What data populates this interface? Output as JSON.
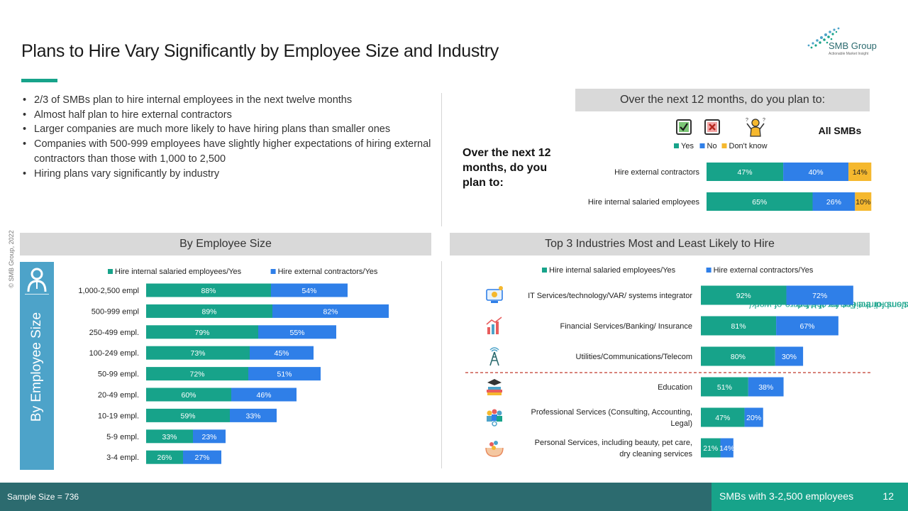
{
  "title": "Plans to Hire Vary Significantly by Employee Size and Industry",
  "logo": {
    "name": "SMB Group",
    "tagline": "Actionable Market Insight"
  },
  "bullets": [
    "2/3 of SMBs plan to hire internal employees in the next twelve months",
    "Almost half plan to hire external contractors",
    "Larger companies are much more likely to have hiring plans than smaller ones",
    "Companies with 500-999 employees have slightly higher expectations of hiring external contractors than those with 1,000 to 2,500",
    "Hiring plans vary significantly by industry"
  ],
  "copyright": "© SMB Group, 2022",
  "source": {
    "line1": "Source:  SMB Directions for the Future of Work",
    "line2": "https://www.smb-gr.com/reports/smb-directions-for-the-future-of-work/."
  },
  "top_panel": {
    "header": "Over the  next 12 months, do you plan to:",
    "big_question": "Over the next 12 months, do you plan to:",
    "all_smbs": "All SMBs",
    "icons": [
      "yes-checkbox-icon",
      "no-checkbox-icon",
      "dont-know-person-icon"
    ]
  },
  "size_panel": {
    "header": "By Employee Size",
    "side_label": "By Employee Size"
  },
  "industry_panel": {
    "header": "Top 3 Industries Most and Least Likely to Hire"
  },
  "footer": {
    "sample": "Sample Size = 736",
    "segment": "SMBs with 3-2,500 employees",
    "page": "12"
  },
  "colors": {
    "teal": "#17a38a",
    "blue": "#2f7fe8",
    "yellow": "#f5b82e",
    "band": "#d9d9d9",
    "side_panel": "#4da3c9",
    "footer_dark": "#2c6b6f",
    "divider_red": "#c0392b"
  },
  "chart_data": [
    {
      "id": "all-smbs",
      "type": "bar",
      "orientation": "horizontal",
      "stacked": true,
      "categories": [
        "Hire external contractors",
        "Hire internal salaried employees"
      ],
      "series": [
        {
          "name": "Yes",
          "color": "#17a38a",
          "values": [
            47,
            65
          ]
        },
        {
          "name": "No",
          "color": "#2f7fe8",
          "values": [
            40,
            26
          ]
        },
        {
          "name": "Don't know",
          "color": "#f5b82e",
          "values": [
            14,
            10
          ]
        }
      ],
      "legend": "top"
    },
    {
      "id": "by-employee-size",
      "type": "bar",
      "orientation": "horizontal",
      "stacked": true,
      "categories": [
        "1,000-2,500 empl",
        "500-999 empl",
        "250-499 empl.",
        "100-249 empl.",
        "50-99 empl.",
        "20-49 empl.",
        "10-19 empl.",
        "5-9 empl.",
        "3-4 empl."
      ],
      "series": [
        {
          "name": "Hire internal salaried employees/Yes",
          "color": "#17a38a",
          "values": [
            88,
            89,
            79,
            73,
            72,
            60,
            59,
            33,
            26
          ]
        },
        {
          "name": "Hire external contractors/Yes",
          "color": "#2f7fe8",
          "values": [
            54,
            82,
            55,
            45,
            51,
            46,
            33,
            23,
            27
          ]
        }
      ],
      "legend": "top"
    },
    {
      "id": "by-industry",
      "type": "bar",
      "orientation": "horizontal",
      "stacked": true,
      "categories": [
        "IT Services/technology/VAR/ systems integrator",
        "Financial Services/Banking/ Insurance",
        "Utilities/Communications/Telecom",
        "Education",
        "Professional Services (Consulting, Accounting, Legal)",
        "Personal Services, including beauty, pet care, dry cleaning services"
      ],
      "category_icons": [
        "it-services-icon",
        "financial-services-icon",
        "telecom-tower-icon",
        "education-icon",
        "professional-services-icon",
        "personal-services-icon"
      ],
      "series": [
        {
          "name": "Hire internal salaried employees/Yes",
          "color": "#17a38a",
          "values": [
            92,
            81,
            80,
            51,
            47,
            21
          ]
        },
        {
          "name": "Hire external contractors/Yes",
          "color": "#2f7fe8",
          "values": [
            72,
            67,
            30,
            38,
            20,
            14
          ]
        }
      ],
      "legend": "top"
    }
  ]
}
